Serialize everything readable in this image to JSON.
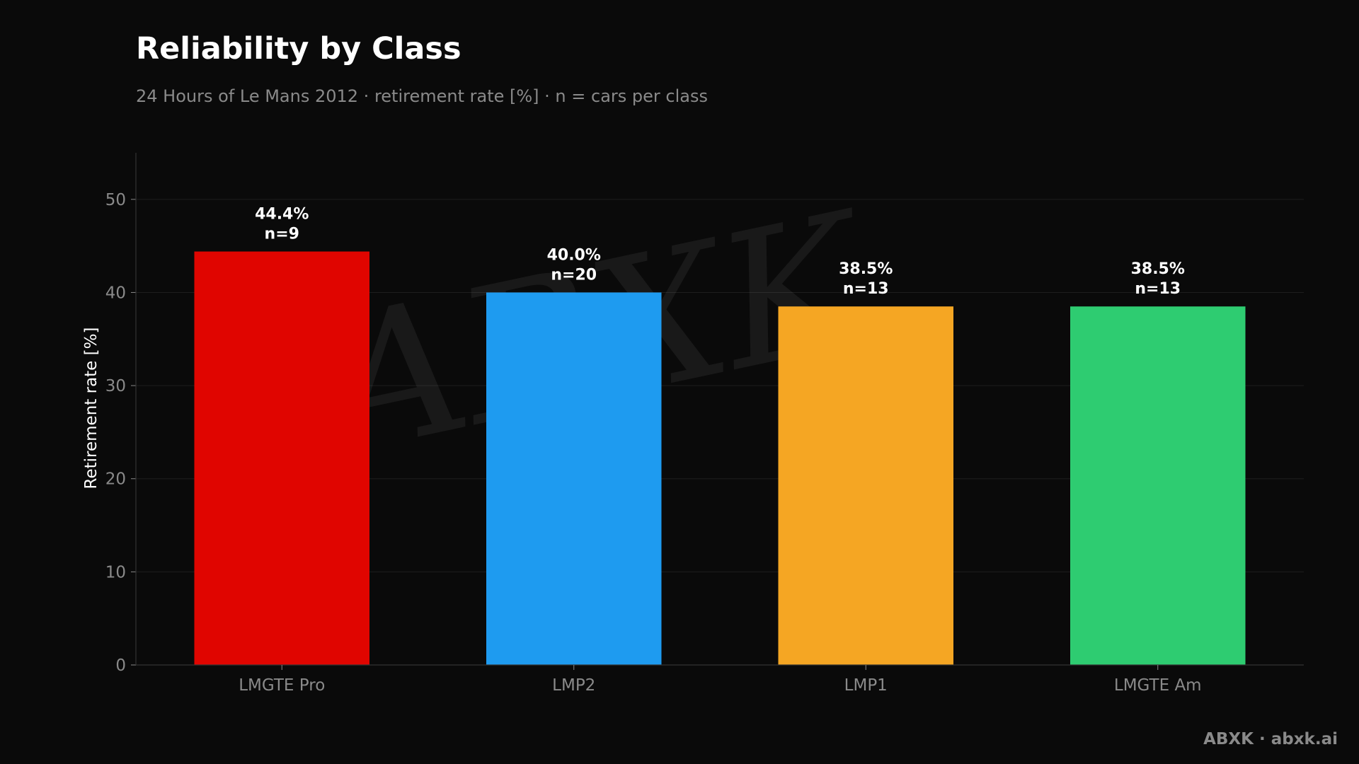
{
  "header": {
    "title": "Reliability by Class",
    "subtitle": "24 Hours of Le Mans 2012 · retirement rate [%] · n = cars per class"
  },
  "footer": {
    "credit": "ABXK · abxk.ai"
  },
  "watermark": {
    "text": "ABXK"
  },
  "chart_data": {
    "type": "bar",
    "title": "Reliability by Class",
    "subtitle": "24 Hours of Le Mans 2012 · retirement rate [%] · n = cars per class",
    "xlabel": "",
    "ylabel": "Retirement rate [%]",
    "ylim": [
      0,
      55
    ],
    "yticks": [
      0,
      10,
      20,
      30,
      40,
      50
    ],
    "grid": true,
    "categories": [
      "LMGTE Pro",
      "LMP2",
      "LMP1",
      "LMGTE Am"
    ],
    "values": [
      44.4,
      40.0,
      38.5,
      38.5
    ],
    "n": [
      9,
      20,
      13,
      13
    ],
    "value_labels": [
      "44.4%",
      "40.0%",
      "38.5%",
      "38.5%"
    ],
    "n_labels": [
      "n=9",
      "n=20",
      "n=13",
      "n=13"
    ],
    "colors": [
      "#e00500",
      "#1e9bf0",
      "#f5a623",
      "#2ecc71"
    ]
  },
  "colors": {
    "background": "#0a0a0a",
    "grid": "#1e1e1e",
    "axis": "#333333",
    "tick_text": "#8a8a8a",
    "label_text": "#ffffff"
  }
}
